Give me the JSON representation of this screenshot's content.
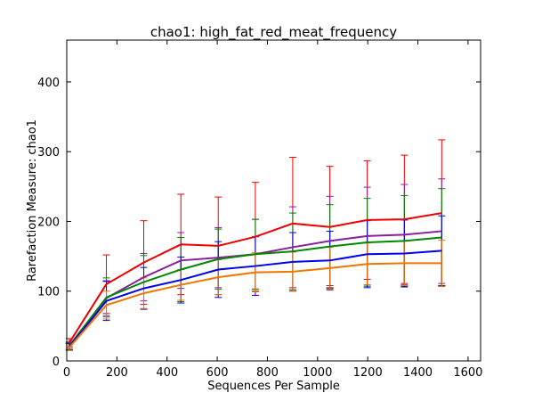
{
  "chart_data": {
    "type": "line",
    "title": "chao1: high_fat_red_meat_frequency",
    "xlabel": "Sequences Per Sample",
    "ylabel": "Rarefaction Measure: chao1",
    "xlim": [
      0,
      1650
    ],
    "ylim": [
      0,
      460
    ],
    "xticks": [
      0,
      200,
      400,
      600,
      800,
      1000,
      1200,
      1400,
      1600
    ],
    "yticks": [
      0,
      100,
      200,
      300,
      400
    ],
    "grid": false,
    "x": [
      10,
      158,
      307,
      455,
      604,
      752,
      901,
      1049,
      1198,
      1346,
      1495
    ],
    "series": [
      {
        "color": "#ee0000",
        "values": [
          26,
          110,
          141,
          167,
          165,
          178,
          197,
          192,
          202,
          203,
          212
        ],
        "err": [
          6,
          42,
          60,
          72,
          70,
          78,
          95,
          87,
          85,
          92,
          105
        ]
      },
      {
        "color": "#8b1e9e",
        "values": [
          22,
          90,
          120,
          144,
          148,
          153,
          163,
          172,
          179,
          181,
          186
        ],
        "err": [
          5,
          25,
          34,
          40,
          43,
          50,
          58,
          64,
          70,
          72,
          75
        ]
      },
      {
        "color": "#008800",
        "values": [
          21,
          91,
          113,
          131,
          146,
          153,
          157,
          164,
          170,
          172,
          177
        ],
        "err": [
          5,
          28,
          38,
          46,
          43,
          50,
          55,
          60,
          63,
          65,
          70
        ]
      },
      {
        "color": "#0000ee",
        "values": [
          20,
          86,
          104,
          116,
          131,
          136,
          142,
          144,
          153,
          154,
          158
        ],
        "err": [
          5,
          28,
          30,
          33,
          40,
          42,
          42,
          42,
          48,
          48,
          50
        ]
      },
      {
        "color": "#ee7700",
        "values": [
          19,
          80,
          97,
          109,
          120,
          127,
          128,
          133,
          139,
          140,
          140
        ],
        "err": [
          4,
          20,
          22,
          22,
          25,
          28,
          28,
          30,
          30,
          32,
          33
        ]
      }
    ]
  }
}
